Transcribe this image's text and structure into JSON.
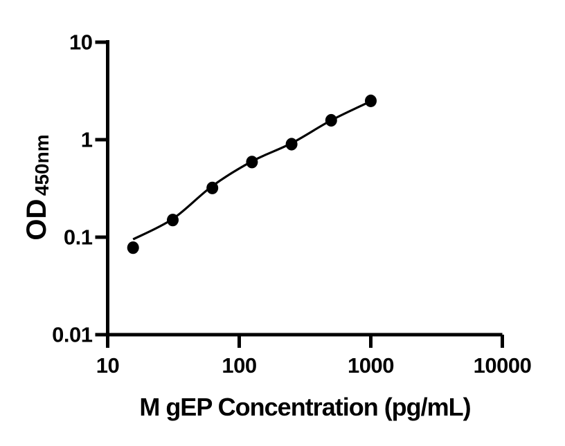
{
  "figure": {
    "background": "#ffffff"
  },
  "chart_data": {
    "type": "scatter",
    "title": "",
    "xlabel": "M gEP Concentration (pg/mL)",
    "ylabel_main": "OD",
    "ylabel_sub": "450nm",
    "x_scale": "log10",
    "y_scale": "log10",
    "xlim": [
      10,
      10000
    ],
    "ylim": [
      0.01,
      10
    ],
    "grid": false,
    "legend": "none",
    "axis_color": "#000000",
    "text_color": "#000000",
    "x_ticks": [
      {
        "v": 10,
        "label": "10"
      },
      {
        "v": 100,
        "label": "100"
      },
      {
        "v": 1000,
        "label": "1000"
      },
      {
        "v": 10000,
        "label": "10000"
      }
    ],
    "y_ticks": [
      {
        "v": 10,
        "label": "10"
      },
      {
        "v": 1,
        "label": "1"
      },
      {
        "v": 0.1,
        "label": "0.1"
      },
      {
        "v": 0.01,
        "label": "0.01"
      }
    ],
    "series": [
      {
        "name": "standard-points",
        "kind": "scatter",
        "marker": "filled-circle",
        "color": "#000000",
        "points": [
          {
            "x": 15.6,
            "y": 0.078
          },
          {
            "x": 31.25,
            "y": 0.15
          },
          {
            "x": 62.5,
            "y": 0.32
          },
          {
            "x": 125,
            "y": 0.59
          },
          {
            "x": 250,
            "y": 0.9
          },
          {
            "x": 500,
            "y": 1.58
          },
          {
            "x": 1000,
            "y": 2.5
          }
        ]
      },
      {
        "name": "fit-curve",
        "kind": "line",
        "color": "#000000",
        "points": [
          {
            "x": 15.6,
            "y": 0.095
          },
          {
            "x": 31.25,
            "y": 0.154
          },
          {
            "x": 62.5,
            "y": 0.335
          },
          {
            "x": 125,
            "y": 0.6
          },
          {
            "x": 250,
            "y": 0.92
          },
          {
            "x": 500,
            "y": 1.58
          },
          {
            "x": 1000,
            "y": 2.48
          }
        ]
      }
    ]
  }
}
